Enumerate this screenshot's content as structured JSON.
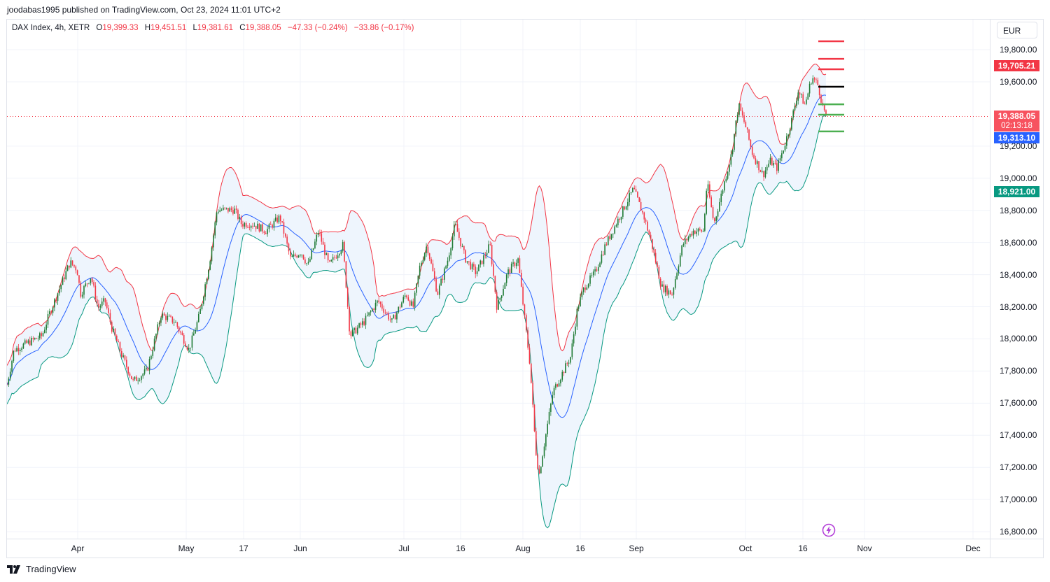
{
  "attribution": "joodabas1995 published on TradingView.com, Oct 23, 2024 11:01 UTC+2",
  "legend": {
    "symbol": "DAX Index, 4h, XETR",
    "open_key": "O",
    "open": "19,399.33",
    "high_key": "H",
    "high": "19,451.51",
    "low_key": "L",
    "low": "19,381.61",
    "close_key": "C",
    "close": "19,388.05",
    "change": "−47.33 (−0.24%)",
    "change2": "−33.86 (−0.17%)"
  },
  "currency": "EUR",
  "price_labels": {
    "upper_band": "19,705.21",
    "last_price": "19,388.05",
    "countdown": "02:13:18",
    "middle_band": "19,313.10",
    "lower_band": "18,921.00"
  },
  "price_ticks": [
    "19,800.00",
    "19,600.00",
    "19,200.00",
    "19,000.00",
    "18,800.00",
    "18,600.00",
    "18,400.00",
    "18,200.00",
    "18,000.00",
    "17,800.00",
    "17,600.00",
    "17,400.00",
    "17,200.00",
    "17,000.00",
    "16,800.00"
  ],
  "time_ticks": [
    "Apr",
    "May",
    "17",
    "Jun",
    "Jul",
    "16",
    "Aug",
    "16",
    "Sep",
    "Oct",
    "16",
    "Nov",
    "Dec"
  ],
  "brand": "TradingView",
  "colors": {
    "up": "#1e7a34",
    "down": "#f23645",
    "upper": "#f23645",
    "middle": "#2962ff",
    "lower": "#089981",
    "fill": "#eef5fd"
  },
  "chart_data": {
    "type": "candlestick",
    "indicator": "Bollinger Bands (20, 2)",
    "y_range": [
      16750,
      19900
    ],
    "price_path_anchors": [
      [
        "Mar 11",
        17715
      ],
      [
        "Mar 13",
        17932
      ],
      [
        "Mar 20",
        18020
      ],
      [
        "Mar 22",
        18150
      ],
      [
        "Mar 28",
        18477
      ],
      [
        "Apr 2",
        18433
      ],
      [
        "Apr 3",
        18280
      ],
      [
        "Apr 5",
        18390
      ],
      [
        "Apr 8",
        18193
      ],
      [
        "Apr 10",
        18237
      ],
      [
        "Apr 12",
        18063
      ],
      [
        "Apr 15",
        17888
      ],
      [
        "Apr 17",
        17736
      ],
      [
        "Apr 19",
        17802
      ],
      [
        "Apr 24",
        18150
      ],
      [
        "Apr 26",
        18106
      ],
      [
        "Apr 30",
        17932
      ],
      [
        "May 2",
        18150
      ],
      [
        "May 6",
        18498
      ],
      [
        "May 8",
        18803
      ],
      [
        "May 13",
        18803
      ],
      [
        "May 16",
        18716
      ],
      [
        "May 20",
        18716
      ],
      [
        "May 23",
        18672
      ],
      [
        "May 27",
        18759
      ],
      [
        "May 30",
        18498
      ],
      [
        "Jun 3",
        18542
      ],
      [
        "Jun 4",
        18455
      ],
      [
        "Jun 6",
        18672
      ],
      [
        "Jun 10",
        18455
      ],
      [
        "Jun 12",
        18585
      ],
      [
        "Jun 14",
        18019
      ],
      [
        "Jun 17",
        18106
      ],
      [
        "Jun 20",
        18237
      ],
      [
        "Jun 24",
        18106
      ],
      [
        "Jun 28",
        18280
      ],
      [
        "Jul 2",
        18193
      ],
      [
        "Jul 3",
        18455
      ],
      [
        "Jul 5",
        18585
      ],
      [
        "Jul 8",
        18280
      ],
      [
        "Jul 11",
        18498
      ],
      [
        "Jul 15",
        18716
      ],
      [
        "Jul 17",
        18498
      ],
      [
        "Jul 19",
        18411
      ],
      [
        "Jul 23",
        18585
      ],
      [
        "Jul 25",
        18193
      ],
      [
        "Jul 29",
        18411
      ],
      [
        "Jul 31",
        18498
      ],
      [
        "Aug 1",
        18106
      ],
      [
        "Aug 2",
        17845
      ],
      [
        "Aug 5",
        17322
      ],
      [
        "Aug 6",
        17150
      ],
      [
        "Aug 7",
        17410
      ],
      [
        "Aug 9",
        17671
      ],
      [
        "Aug 12",
        17758
      ],
      [
        "Aug 14",
        17888
      ],
      [
        "Aug 15",
        18193
      ],
      [
        "Aug 19",
        18324
      ],
      [
        "Aug 21",
        18411
      ],
      [
        "Aug 23",
        18585
      ],
      [
        "Aug 28",
        18759
      ],
      [
        "Sep 2",
        18933
      ],
      [
        "Sep 4",
        18759
      ],
      [
        "Sep 6",
        18607
      ],
      [
        "Sep 9",
        18324
      ],
      [
        "Sep 11",
        18280
      ],
      [
        "Sep 13",
        18585
      ],
      [
        "Sep 17",
        18672
      ],
      [
        "Sep 19",
        18672
      ],
      [
        "Sep 20",
        18977
      ],
      [
        "Sep 23",
        18716
      ],
      [
        "Sep 25",
        18890
      ],
      [
        "Sep 27",
        19151
      ],
      [
        "Sep 30",
        19456
      ],
      [
        "Oct 1",
        19325
      ],
      [
        "Oct 3",
        19151
      ],
      [
        "Oct 7",
        19020
      ],
      [
        "Oct 9",
        19107
      ],
      [
        "Oct 10",
        19064
      ],
      [
        "Oct 14",
        19195
      ],
      [
        "Oct 15",
        19347
      ],
      [
        "Oct 16",
        19543
      ],
      [
        "Oct 17",
        19456
      ],
      [
        "Oct 21",
        19630
      ],
      [
        "Oct 22",
        19586
      ],
      [
        "Oct 22 pm",
        19456
      ],
      [
        "Oct 23",
        19388.05
      ]
    ],
    "horizontal_levels": [
      {
        "price": 19852,
        "color": "#f23645"
      },
      {
        "price": 19743,
        "color": "#f23645"
      },
      {
        "price": 19678,
        "color": "#f23645"
      },
      {
        "price": 19569,
        "color": "#000000"
      },
      {
        "price": 19460,
        "color": "#4caf50"
      },
      {
        "price": 19395,
        "color": "#4caf50"
      },
      {
        "price": 19291,
        "color": "#4caf50"
      }
    ],
    "last_price": 19388.05
  }
}
